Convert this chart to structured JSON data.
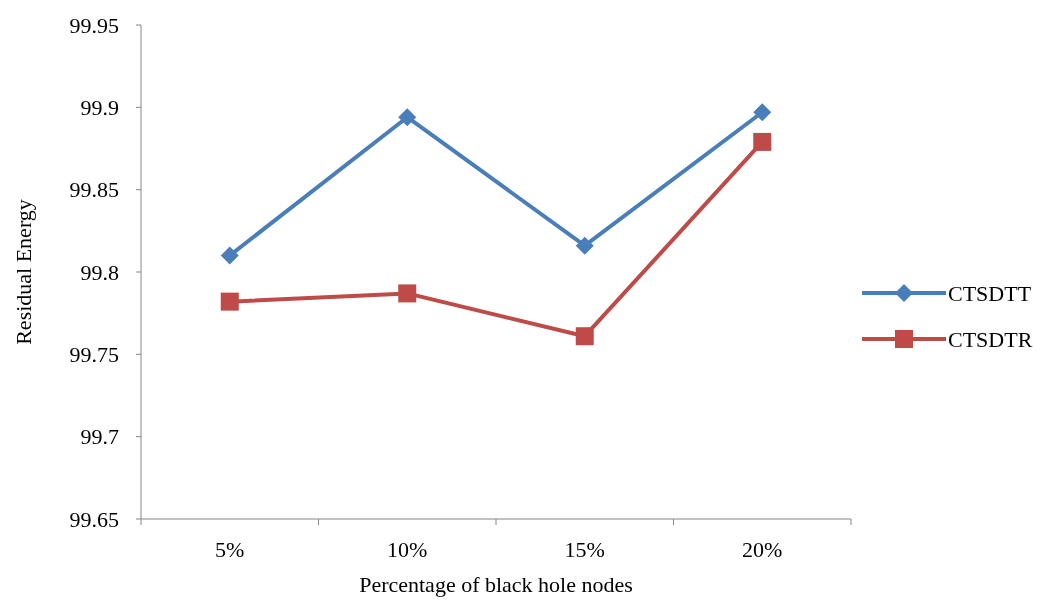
{
  "chart_data": {
    "type": "line",
    "xlabel": "Percentage of black hole nodes",
    "ylabel": "Residual Energy",
    "categories": [
      "5%",
      "10%",
      "15%",
      "20%"
    ],
    "series": [
      {
        "name": "CTSDTT",
        "color": "#4a7ebb",
        "marker": "diamond",
        "values": [
          99.81,
          99.894,
          99.816,
          99.897
        ]
      },
      {
        "name": "CTSDTR",
        "color": "#be4b48",
        "marker": "square",
        "values": [
          99.782,
          99.787,
          99.761,
          99.879
        ]
      }
    ],
    "ylim": [
      99.65,
      99.95
    ],
    "yticks": [
      99.65,
      99.7,
      99.75,
      99.8,
      99.85,
      99.9,
      99.95
    ],
    "grid": false,
    "legend": "right"
  }
}
